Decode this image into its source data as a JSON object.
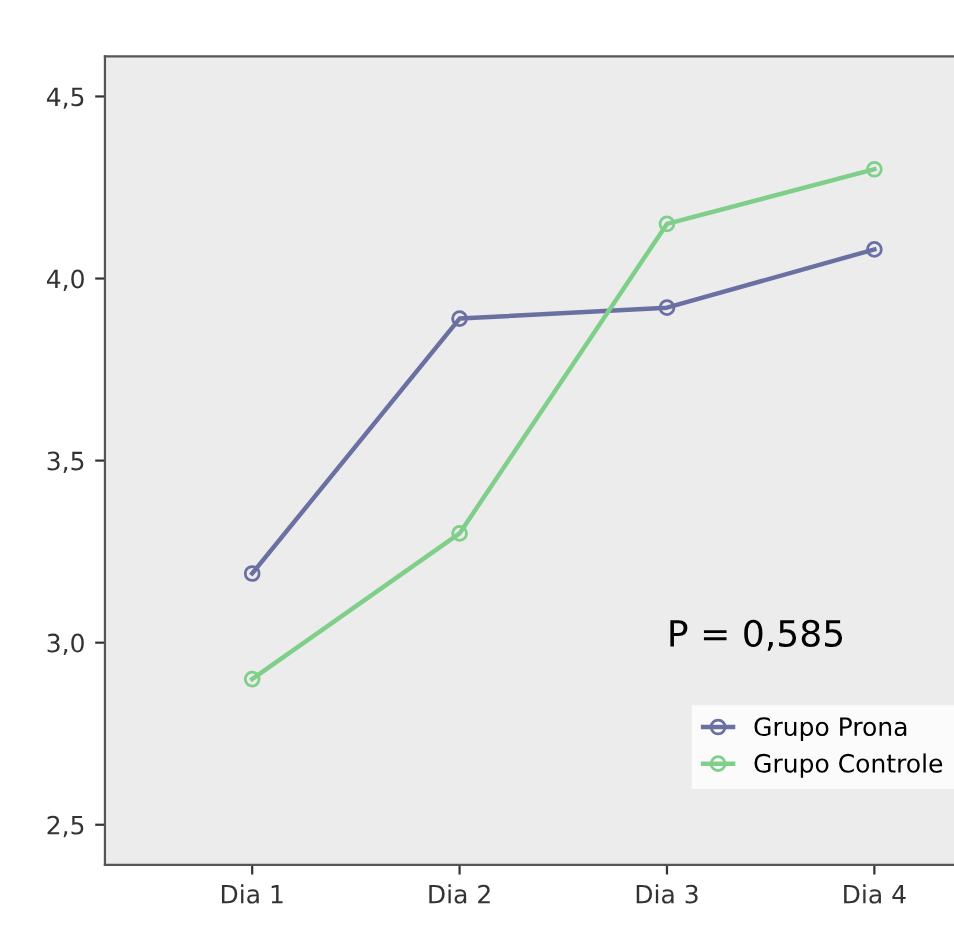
{
  "chart_data": {
    "type": "line",
    "categories": [
      "Dia 1",
      "Dia 2",
      "Dia 3",
      "Dia 4"
    ],
    "series": [
      {
        "name": "Grupo Prona",
        "color": "#6b70a3",
        "values": [
          3.19,
          3.89,
          3.92,
          4.08
        ]
      },
      {
        "name": "Grupo Controle",
        "color": "#7fcf8a",
        "values": [
          2.9,
          3.3,
          4.15,
          4.3
        ]
      }
    ],
    "ylim": [
      2.39,
      4.61
    ],
    "yticks": [
      {
        "value": 2.5,
        "label": "2,5"
      },
      {
        "value": 3.0,
        "label": "3,0"
      },
      {
        "value": 3.5,
        "label": "3,5"
      },
      {
        "value": 4.0,
        "label": "4,0"
      },
      {
        "value": 4.5,
        "label": "4,5"
      }
    ],
    "annotations": [
      "P = 0,585"
    ],
    "marker": "circle",
    "line_style": "solid",
    "legend": "bottom right",
    "grid": false
  }
}
